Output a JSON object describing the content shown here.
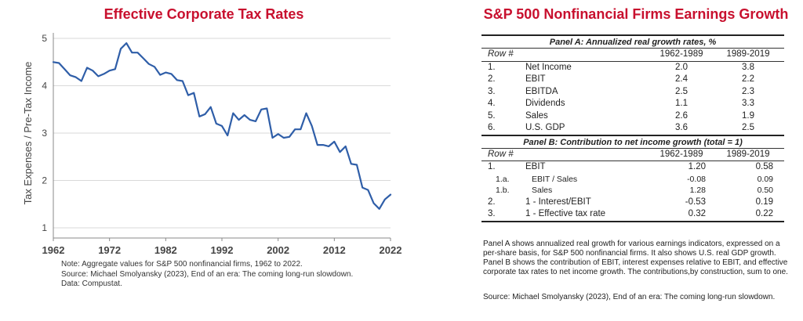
{
  "chart_data": {
    "type": "line",
    "title": "Effective Corporate Tax Rates",
    "ylabel": "Tax Expenses / Pre-Tax Income",
    "xlabel": "",
    "xlim": [
      1962,
      2022
    ],
    "ylim": [
      1,
      5
    ],
    "xticks": [
      "1962",
      "1972",
      "1982",
      "1992",
      "2002",
      "2012",
      "2022"
    ],
    "yticks": [
      "1",
      "2",
      "3",
      "4",
      "5"
    ],
    "grid": "horizontal",
    "line_color": "#2f5ea8",
    "x": [
      1962,
      1963,
      1964,
      1965,
      1966,
      1967,
      1968,
      1969,
      1970,
      1971,
      1972,
      1973,
      1974,
      1975,
      1976,
      1977,
      1978,
      1979,
      1980,
      1981,
      1982,
      1983,
      1984,
      1985,
      1986,
      1987,
      1988,
      1989,
      1990,
      1991,
      1992,
      1993,
      1994,
      1995,
      1996,
      1997,
      1998,
      1999,
      2000,
      2001,
      2002,
      2003,
      2004,
      2005,
      2006,
      2007,
      2008,
      2009,
      2010,
      2011,
      2012,
      2013,
      2014,
      2015,
      2016,
      2017,
      2018,
      2019,
      2020,
      2021,
      2022
    ],
    "values": [
      4.5,
      4.48,
      4.35,
      4.22,
      4.18,
      4.1,
      4.38,
      4.32,
      4.2,
      4.25,
      4.32,
      4.35,
      4.78,
      4.9,
      4.7,
      4.7,
      4.58,
      4.46,
      4.4,
      4.23,
      4.28,
      4.25,
      4.12,
      4.1,
      3.8,
      3.85,
      3.35,
      3.4,
      3.55,
      3.2,
      3.15,
      2.95,
      3.42,
      3.28,
      3.38,
      3.28,
      3.25,
      3.5,
      3.52,
      2.9,
      2.98,
      2.9,
      2.92,
      3.08,
      3.08,
      3.42,
      3.15,
      2.75,
      2.75,
      2.72,
      2.82,
      2.6,
      2.72,
      2.35,
      2.33,
      1.85,
      1.8,
      1.52,
      1.4,
      1.6,
      1.7
    ],
    "notes": [
      "Note: Aggregate values for S&P 500 nonfinancial firms, 1962 to 2022.",
      "Source:  Michael Smolyansky (2023), End of an era: The coming long-run slowdown.",
      "Data: Compustat."
    ]
  },
  "table": {
    "title": "S&P 500 Nonfinancial Firms Earnings Growth",
    "panel_a": {
      "title": "Panel A: Annualized real growth rates, %",
      "row_header": "Row #",
      "col1": "1962-1989",
      "col2": "1989-2019",
      "rows": [
        {
          "num": "1.",
          "label": "Net Income",
          "v1": "2.0",
          "v2": "3.8"
        },
        {
          "num": "2.",
          "label": "EBIT",
          "v1": "2.4",
          "v2": "2.2"
        },
        {
          "num": "3.",
          "label": "EBITDA",
          "v1": "2.5",
          "v2": "2.3"
        },
        {
          "num": "4.",
          "label": "Dividends",
          "v1": "1.1",
          "v2": "3.3"
        },
        {
          "num": "5.",
          "label": "Sales",
          "v1": "2.6",
          "v2": "1.9"
        },
        {
          "num": "6.",
          "label": "U.S. GDP",
          "v1": "3.6",
          "v2": "2.5"
        }
      ]
    },
    "panel_b": {
      "title": "Panel B: Contribution to net income growth (total = 1)",
      "row_header": "Row #",
      "col1": "1962-1989",
      "col2": "1989-2019",
      "rows": [
        {
          "num": "1.",
          "label": "EBIT",
          "v1": "1.20",
          "v2": "0.58",
          "sub": false
        },
        {
          "num": "1.a.",
          "label": "EBIT / Sales",
          "v1": "-0.08",
          "v2": "0.09",
          "sub": true
        },
        {
          "num": "1.b.",
          "label": "Sales",
          "v1": "1.28",
          "v2": "0.50",
          "sub": true
        },
        {
          "num": "2.",
          "label": "1 - Interest/EBIT",
          "v1": "-0.53",
          "v2": "0.19",
          "sub": false
        },
        {
          "num": "3.",
          "label": "1 - Effective tax rate",
          "v1": "0.32",
          "v2": "0.22",
          "sub": false
        }
      ]
    },
    "description": "Panel A shows annualized real growth for various earnings indicators, expressed on a per-share basis, for S&P 500 nonfinancial firms. It also shows U.S. real GDP growth. Panel B shows the contribution of EBIT, interest expenses relative to EBIT, and effective corporate tax rates to net income growth. The contributions,by construction, sum to one.",
    "source": "Source:  Michael Smolyansky (2023), End of an era: The coming long-run slowdown."
  }
}
